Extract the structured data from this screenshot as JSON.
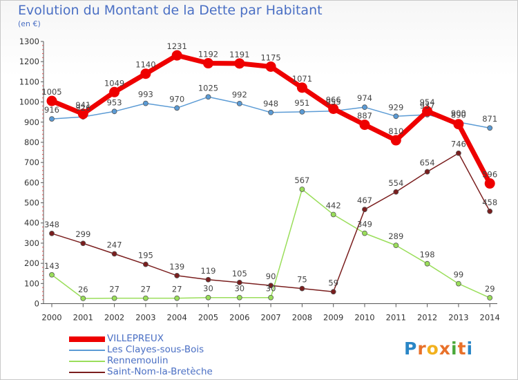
{
  "title": "Evolution du Montant de la Dette par Habitant",
  "subtitle": "(en €)",
  "logo": {
    "letters": [
      "P",
      "r",
      "o",
      "x",
      "i",
      "t",
      "i"
    ],
    "colors": [
      "#2a86c6",
      "#e8712a",
      "#f2b11e",
      "#e8712a",
      "#4aa83a",
      "#e8712a",
      "#2a86c6"
    ]
  },
  "chart_data": {
    "type": "line",
    "x": [
      "2000",
      "2001",
      "2002",
      "2003",
      "2004",
      "2005",
      "2006",
      "2007",
      "2008",
      "2009",
      "2010",
      "2011",
      "2012",
      "2013",
      "2014"
    ],
    "ylim": [
      0,
      1300
    ],
    "yticks": [
      0,
      100,
      200,
      300,
      400,
      500,
      600,
      700,
      800,
      900,
      1000,
      1100,
      1200,
      1300
    ],
    "grid": false,
    "legend_position": "bottom-left",
    "series": [
      {
        "name": "VILLEPREUX",
        "color": "#ee0000",
        "width": 7,
        "marker_r": 7.5,
        "values": [
          1005,
          941,
          1049,
          1140,
          1231,
          1192,
          1191,
          1175,
          1071,
          966,
          887,
          810,
          954,
          890,
          596
        ]
      },
      {
        "name": "Les Clayes-sous-Bois",
        "color": "#5b9bd5",
        "width": 1.5,
        "marker_r": 3.5,
        "values": [
          916,
          926,
          953,
          993,
          970,
          1025,
          992,
          948,
          951,
          955,
          974,
          929,
          937,
          900,
          871
        ]
      },
      {
        "name": "Rennemoulin",
        "color": "#9ade5a",
        "width": 1.5,
        "marker_r": 3.5,
        "values": [
          143,
          26,
          27,
          27,
          27,
          30,
          30,
          30,
          567,
          442,
          349,
          289,
          198,
          99,
          29
        ]
      },
      {
        "name": "Saint-Nom-la-Bretèche",
        "color": "#7a1e1e",
        "width": 1.5,
        "marker_r": 3.5,
        "values": [
          348,
          299,
          247,
          195,
          139,
          119,
          105,
          90,
          75,
          59,
          467,
          554,
          654,
          746,
          458
        ]
      }
    ]
  }
}
